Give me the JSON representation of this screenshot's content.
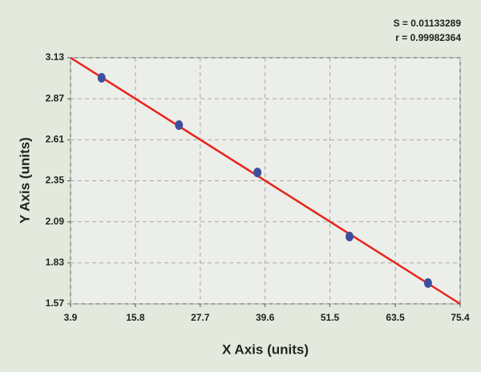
{
  "chart_data": {
    "type": "scatter",
    "x_label": "X Axis (units)",
    "y_label": "Y Axis (units)",
    "annotations": [
      "S = 0.01133289",
      "r = 0.99982364"
    ],
    "x": [
      9.6,
      23.8,
      38.2,
      55.1,
      69.5
    ],
    "values": [
      3.003,
      2.703,
      2.403,
      1.997,
      1.702
    ],
    "color": "#3c4f9e",
    "fit_line": {
      "x": [
        3.9,
        75.4
      ],
      "values": [
        3.13,
        1.57
      ],
      "color": "#e8231c"
    },
    "xlim": [
      3.9,
      75.4
    ],
    "xticks": [
      3.9,
      15.8,
      27.7,
      39.6,
      51.5,
      63.5,
      75.4
    ],
    "ylim": [
      1.57,
      3.13
    ],
    "yticks": [
      1.57,
      1.83,
      2.09,
      2.35,
      2.61,
      2.87,
      3.13
    ],
    "grid": true
  }
}
